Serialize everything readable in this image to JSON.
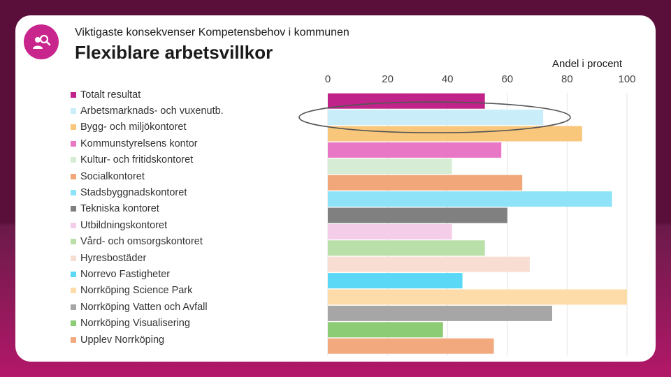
{
  "header": {
    "subtitle": "Viktigaste konsekvenser Kompetensbehov i kommunen",
    "title": "Flexiblare arbetsvillkor"
  },
  "badge": {
    "icon": "person-search-icon",
    "color": "#c8258d"
  },
  "chart_data": {
    "type": "bar",
    "orientation": "horizontal",
    "title": "Flexiblare arbetsvillkor",
    "xlabel": "Andel i procent",
    "ylabel": "",
    "xlim": [
      0,
      100
    ],
    "xticks": [
      0,
      20,
      40,
      60,
      80,
      100
    ],
    "grid": true,
    "legend_position": "left",
    "categories": [
      "Totalt resultat",
      "Arbetsmarknads- och vuxenutb.",
      "Bygg- och miljökontoret",
      "Kommunstyrelsens kontor",
      "Kultur- och fritidskontoret",
      "Socialkontoret",
      "Stadsbyggnadskontoret",
      "Tekniska kontoret",
      "Utbildningskontoret",
      "Vård- och omsorgskontoret",
      "Hyresbostäder",
      "Norrevo Fastigheter",
      "Norrköping Science Park",
      "Norrköping Vatten och Avfall",
      "Norrköping Visualisering",
      "Upplev Norrköping"
    ],
    "values": [
      52.5,
      72,
      85,
      58,
      41.5,
      65,
      95,
      60,
      41.5,
      52.5,
      67.5,
      45,
      100,
      75,
      38.5,
      55.5
    ],
    "colors": [
      "#c0248a",
      "#c9eefa",
      "#f8c77c",
      "#e878c6",
      "#d6ecd4",
      "#f2a77a",
      "#8ee3f8",
      "#808080",
      "#f4cde8",
      "#b8e0a8",
      "#f8ded2",
      "#5ad8f5",
      "#fddcaa",
      "#a6a6a6",
      "#8ccc74",
      "#f2a97e"
    ],
    "highlighted": "Arbetsmarknads- och vuxenutb."
  }
}
